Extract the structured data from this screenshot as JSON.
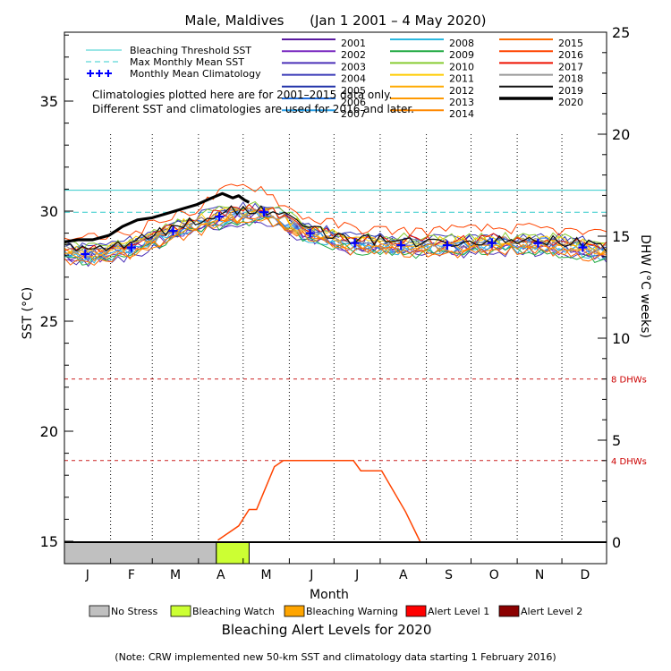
{
  "chart_data": {
    "type": "line",
    "title": "Male, Maldives      (Jan 1 2001 – 4 May 2020)",
    "xlabel": "Month",
    "ylabel_left": "SST (°C)",
    "ylabel_right": "DHW (°C weeks)",
    "ylim_left": [
      14,
      38.5
    ],
    "ylim_right": [
      -1,
      25
    ],
    "yticks_left": [
      "15",
      "20",
      "25",
      "30",
      "35"
    ],
    "yticks_right": [
      "0",
      "5",
      "10",
      "15",
      "20",
      "25"
    ],
    "months": [
      "J",
      "F",
      "M",
      "A",
      "M",
      "J",
      "J",
      "A",
      "S",
      "O",
      "N",
      "D"
    ],
    "reference_lines": {
      "bleaching_threshold_sst": 30.95,
      "max_monthly_mean_sst": 29.95,
      "dhw_8": 8,
      "dhw_4": 4
    },
    "dhw_threshold_labels": {
      "dhw_8": "8 DHWs",
      "dhw_4": "4 DHWs"
    },
    "legend_ref": [
      {
        "label": "Bleaching Threshold SST",
        "color": "#33cccc"
      },
      {
        "label": "Max Monthly Mean SST",
        "color": "#33cccc"
      },
      {
        "label": "Monthly Mean Climatology",
        "color": "#0000ff"
      }
    ],
    "years": [
      {
        "name": "2001",
        "color": "#5a1aa0"
      },
      {
        "name": "2002",
        "color": "#7a2ac0"
      },
      {
        "name": "2003",
        "color": "#4b30b8"
      },
      {
        "name": "2004",
        "color": "#3a3ab8"
      },
      {
        "name": "2005",
        "color": "#2030a8"
      },
      {
        "name": "2006",
        "color": "#1f6fe0"
      },
      {
        "name": "2007",
        "color": "#2aa0e8"
      },
      {
        "name": "2008",
        "color": "#2ab8e0"
      },
      {
        "name": "2009",
        "color": "#22aa44"
      },
      {
        "name": "2010",
        "color": "#88cc33"
      },
      {
        "name": "2011",
        "color": "#ffcc00"
      },
      {
        "name": "2012",
        "color": "#ffaa00"
      },
      {
        "name": "2013",
        "color": "#ff9900"
      },
      {
        "name": "2014",
        "color": "#ff8800"
      },
      {
        "name": "2015",
        "color": "#ff6a00"
      },
      {
        "name": "2016",
        "color": "#ff4400"
      },
      {
        "name": "2017",
        "color": "#ee1100"
      },
      {
        "name": "2018",
        "color": "#999999"
      },
      {
        "name": "2019",
        "color": "#111111"
      },
      {
        "name": "2020",
        "color": "#000000"
      }
    ],
    "notes": [
      "Climatologies plotted here are for 2001–2015 data only.",
      "Different SST and climatologies are used for 2016 and later."
    ],
    "climatology": {
      "day": [
        15,
        46,
        74,
        105,
        135,
        166,
        196,
        227,
        258,
        288,
        319,
        349
      ],
      "sst": [
        28.05,
        28.35,
        29.1,
        29.75,
        29.95,
        29.0,
        28.55,
        28.45,
        28.45,
        28.55,
        28.55,
        28.35
      ]
    },
    "series_2020_sst": {
      "day": [
        1,
        10,
        20,
        31,
        40,
        50,
        60,
        70,
        80,
        90,
        100,
        107,
        114,
        118,
        122,
        125
      ],
      "sst": [
        28.6,
        28.7,
        28.7,
        28.9,
        29.3,
        29.6,
        29.7,
        29.9,
        30.1,
        30.3,
        30.6,
        30.8,
        30.6,
        30.7,
        30.5,
        30.4
      ]
    },
    "dhw_2016": {
      "day": [
        104,
        110,
        118,
        125,
        130,
        134,
        142,
        148,
        155,
        175,
        195,
        200,
        205,
        214,
        230,
        240
      ],
      "dhw": [
        0.1,
        0.4,
        0.8,
        1.6,
        1.6,
        2.3,
        3.7,
        4.0,
        4.0,
        4.0,
        4.0,
        3.5,
        3.5,
        3.5,
        1.5,
        0.0
      ]
    },
    "alert_bar": [
      {
        "level": "no_stress",
        "start_day": 1,
        "end_day": 103,
        "color": "#c0c0c0"
      },
      {
        "level": "bleaching_watch",
        "start_day": 103,
        "end_day": 125,
        "color": "#ccff33"
      }
    ],
    "alert_legend": [
      {
        "label": "No Stress",
        "color": "#c0c0c0"
      },
      {
        "label": "Bleaching Watch",
        "color": "#ccff33"
      },
      {
        "label": "Bleaching Warning",
        "color": "#ffa500"
      },
      {
        "label": "Alert Level 1",
        "color": "#ff0000"
      },
      {
        "label": "Alert Level 2",
        "color": "#8b0000"
      }
    ],
    "alert_title": "Bleaching Alert Levels for 2020",
    "footnote": "(Note: CRW implemented new 50-km SST and climatology data starting 1 February 2016)"
  }
}
